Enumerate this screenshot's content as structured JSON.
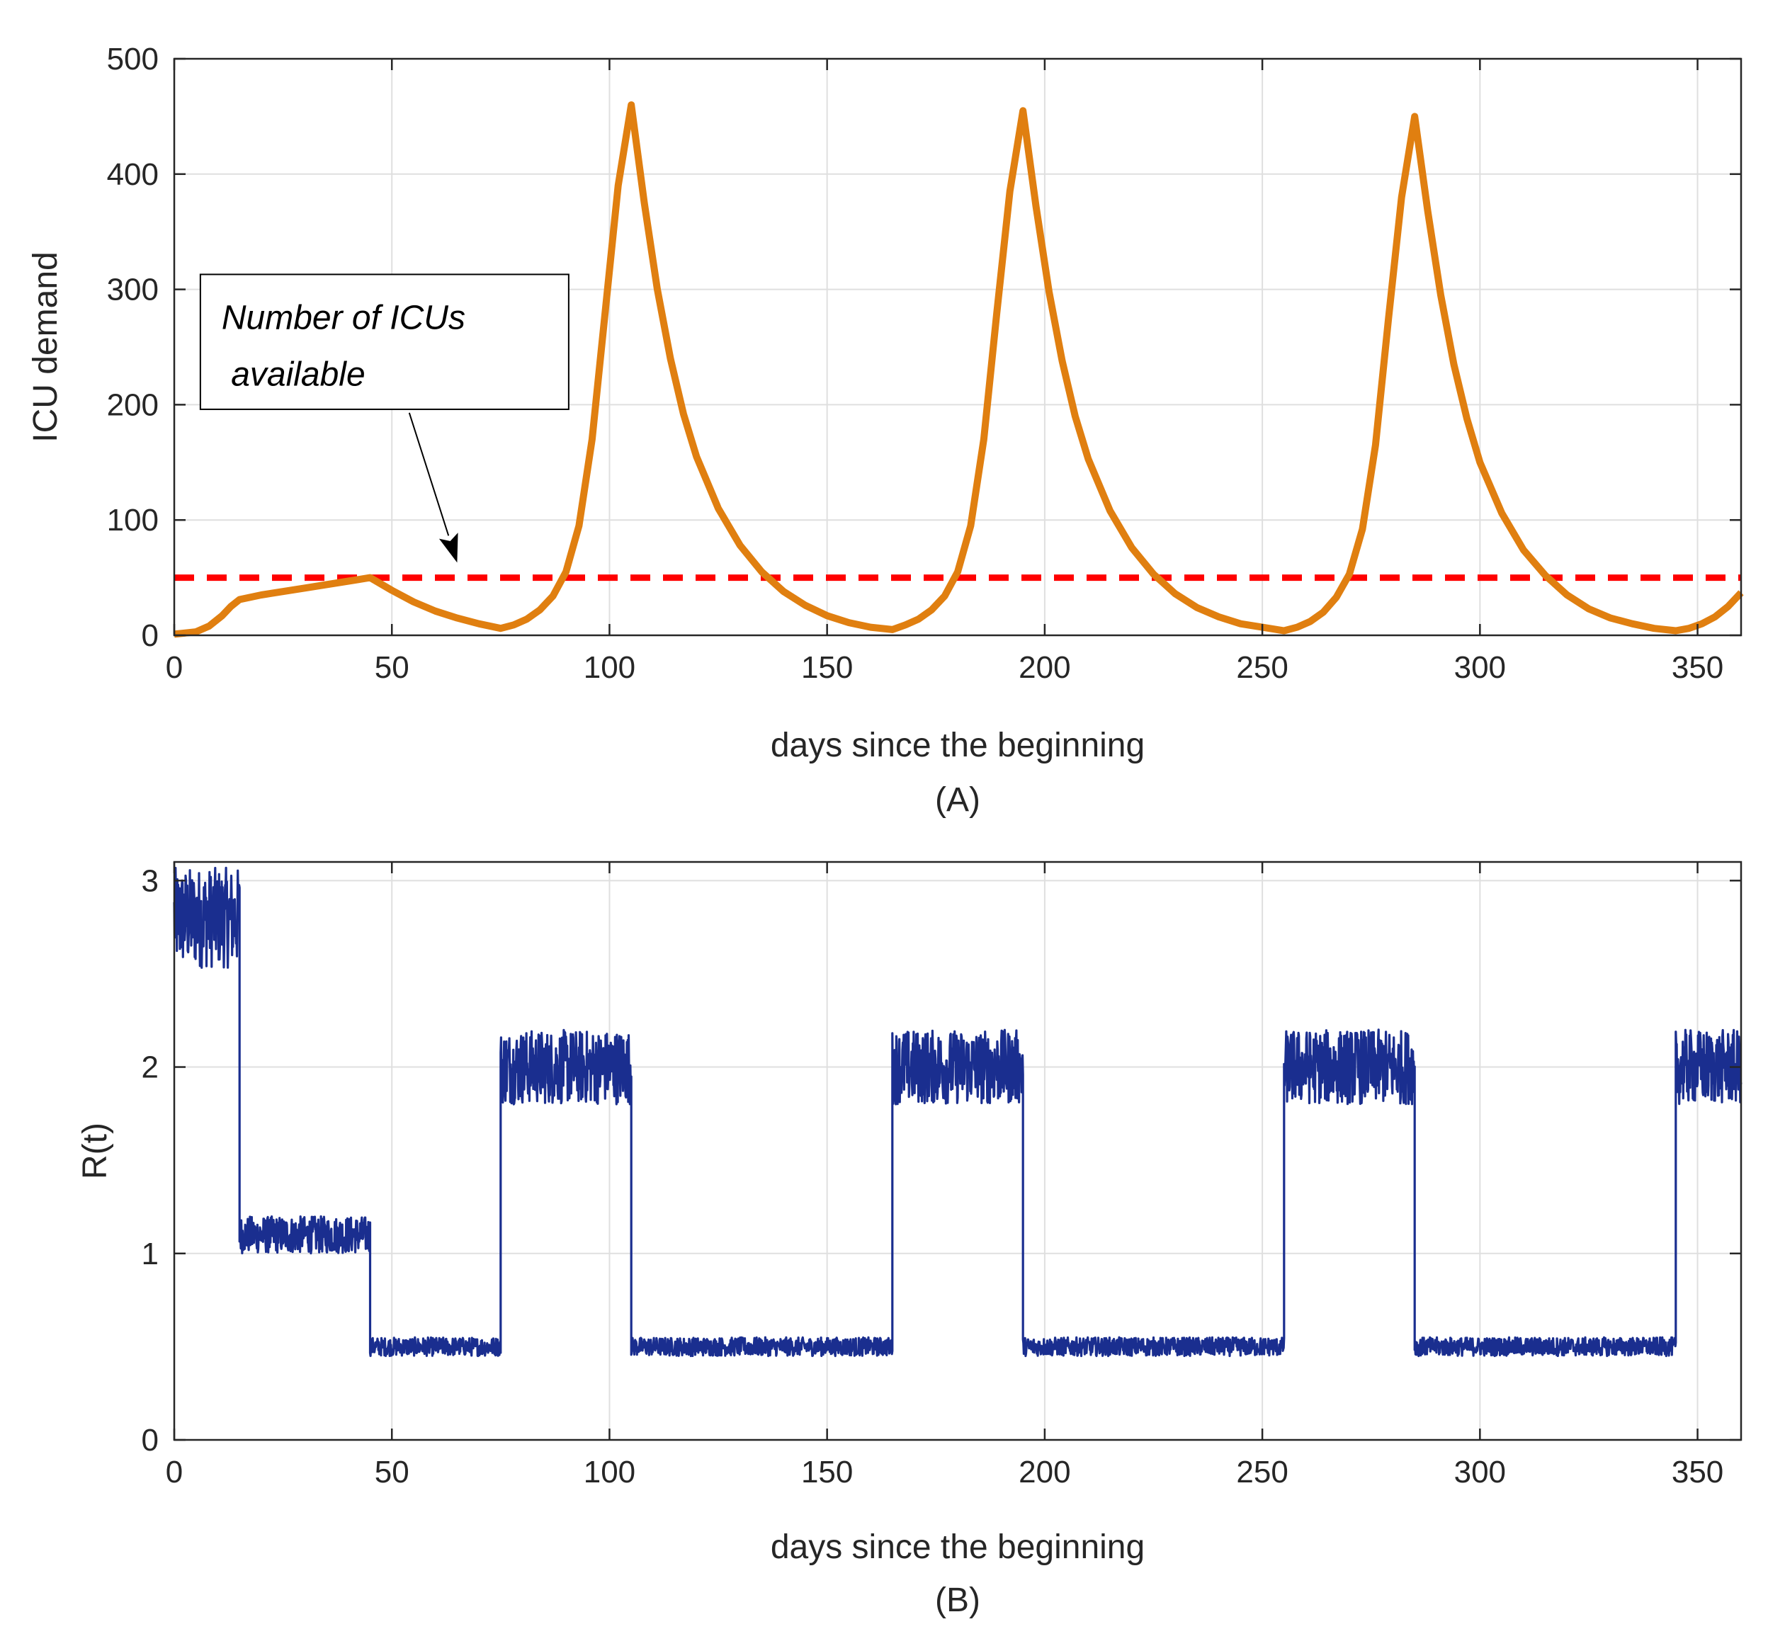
{
  "chart_data": [
    {
      "id": "A",
      "type": "line",
      "panel_label": "(A)",
      "xlabel": "days since the beginning",
      "ylabel": "ICU demand",
      "xlim": [
        0,
        360
      ],
      "ylim": [
        0,
        500
      ],
      "xticks": [
        0,
        50,
        100,
        150,
        200,
        250,
        300,
        350
      ],
      "yticks": [
        0,
        100,
        200,
        300,
        400,
        500
      ],
      "grid": true,
      "series": [
        {
          "name": "ICU demand",
          "color": "#e07f10",
          "style": "solid",
          "x": [
            0,
            5,
            8,
            11,
            13,
            15,
            20,
            30,
            40,
            45,
            50,
            55,
            60,
            65,
            70,
            75,
            78,
            81,
            84,
            87,
            90,
            93,
            96,
            99,
            102,
            105,
            108,
            111,
            114,
            117,
            120,
            125,
            130,
            135,
            140,
            145,
            150,
            155,
            160,
            165,
            168,
            171,
            174,
            177,
            180,
            183,
            186,
            189,
            192,
            195,
            198,
            201,
            204,
            207,
            210,
            215,
            220,
            225,
            230,
            235,
            240,
            245,
            250,
            255,
            258,
            261,
            264,
            267,
            270,
            273,
            276,
            279,
            282,
            285,
            288,
            291,
            294,
            297,
            300,
            305,
            310,
            315,
            320,
            325,
            330,
            335,
            340,
            345,
            348,
            351,
            354,
            357,
            360
          ],
          "values": [
            1,
            3,
            8,
            17,
            25,
            31,
            35,
            41,
            47,
            50,
            39,
            29,
            21,
            15,
            10,
            6,
            9,
            14,
            22,
            34,
            55,
            95,
            170,
            280,
            390,
            460,
            375,
            300,
            240,
            192,
            155,
            110,
            78,
            55,
            38,
            26,
            17,
            11,
            7,
            5,
            9,
            14,
            22,
            34,
            55,
            95,
            170,
            280,
            385,
            455,
            372,
            298,
            238,
            190,
            153,
            108,
            76,
            53,
            36,
            24,
            16,
            10,
            7,
            4,
            7,
            12,
            20,
            33,
            53,
            92,
            165,
            275,
            380,
            450,
            368,
            295,
            235,
            188,
            150,
            106,
            74,
            52,
            35,
            23,
            15,
            10,
            6,
            4,
            6,
            10,
            16,
            25,
            37
          ]
        },
        {
          "name": "Number of ICUs available",
          "color": "#ff0000",
          "style": "dashed",
          "x": [
            0,
            360
          ],
          "values": [
            50,
            50
          ]
        }
      ],
      "annotation": {
        "lines": [
          "Number of ICUs",
          " available"
        ],
        "arrow_target": {
          "x": 65,
          "y": 63
        },
        "arrow_tail": {
          "x": 54,
          "y": 193
        },
        "box_anchor": {
          "x": 6,
          "y": 196
        }
      }
    },
    {
      "id": "B",
      "type": "line",
      "panel_label": "(B)",
      "xlabel": "days since the beginning",
      "ylabel": "R(t)",
      "xlim": [
        0,
        360
      ],
      "ylim": [
        0,
        3.1
      ],
      "xticks": [
        0,
        50,
        100,
        150,
        200,
        250,
        300,
        350
      ],
      "yticks": [
        0,
        1,
        2,
        3
      ],
      "grid": true,
      "series": [
        {
          "name": "R(t)",
          "color": "#1a2e8f",
          "style": "noisy-step",
          "segments": [
            {
              "start": 0,
              "end": 15,
              "mean": 2.8,
              "amplitude": 0.27
            },
            {
              "start": 15,
              "end": 45,
              "mean": 1.1,
              "amplitude": 0.1
            },
            {
              "start": 45,
              "end": 75,
              "mean": 0.5,
              "amplitude": 0.05
            },
            {
              "start": 75,
              "end": 105,
              "mean": 2.0,
              "amplitude": 0.2
            },
            {
              "start": 105,
              "end": 165,
              "mean": 0.5,
              "amplitude": 0.05
            },
            {
              "start": 165,
              "end": 195,
              "mean": 2.0,
              "amplitude": 0.2
            },
            {
              "start": 195,
              "end": 255,
              "mean": 0.5,
              "amplitude": 0.05
            },
            {
              "start": 255,
              "end": 285,
              "mean": 2.0,
              "amplitude": 0.2
            },
            {
              "start": 285,
              "end": 345,
              "mean": 0.5,
              "amplitude": 0.05
            },
            {
              "start": 345,
              "end": 360,
              "mean": 2.0,
              "amplitude": 0.2
            }
          ]
        }
      ]
    }
  ]
}
